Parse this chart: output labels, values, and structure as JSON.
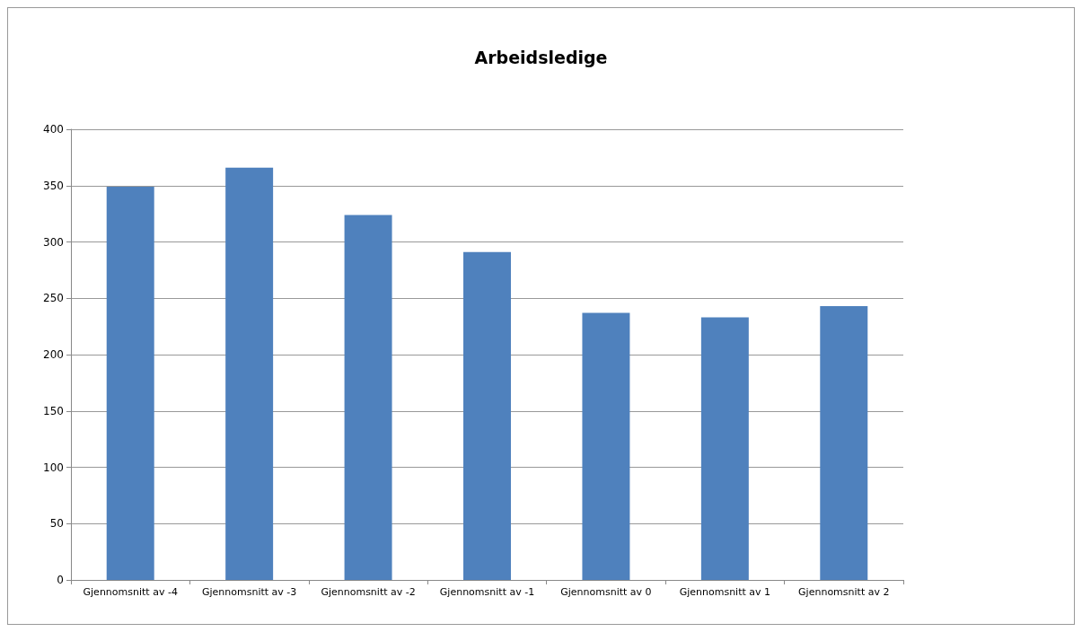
{
  "chart_data": {
    "type": "bar",
    "title": "Arbeidsledige",
    "categories": [
      "Gjennomsnitt av -4",
      "Gjennomsnitt av -3",
      "Gjennomsnitt av -2",
      "Gjennomsnitt av -1",
      "Gjennomsnitt av 0",
      "Gjennomsnitt av 1",
      "Gjennomsnitt av 2"
    ],
    "values": [
      349,
      366,
      324,
      291,
      237,
      233,
      243
    ],
    "color": "#4f81bd",
    "ylim": [
      0,
      400
    ],
    "yticks": [
      0,
      50,
      100,
      150,
      200,
      250,
      300,
      350,
      400
    ],
    "grid": "y"
  }
}
